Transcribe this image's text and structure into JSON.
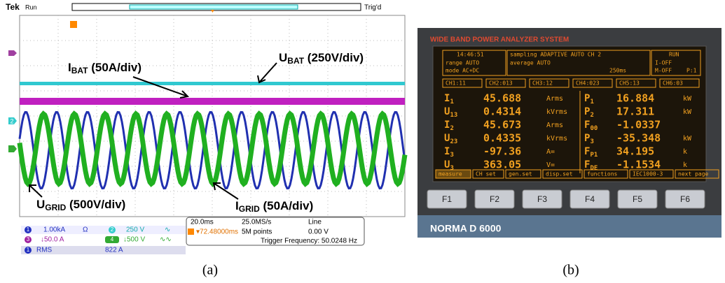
{
  "panel_a": {
    "header": {
      "brand": "Tek",
      "status": "Run",
      "trigger": "Trig'd"
    },
    "annotations": [
      {
        "main": "I",
        "sub": "BAT",
        "scale": " (50A/div)"
      },
      {
        "main": "U",
        "sub": "BAT",
        "scale": " (250V/div)"
      },
      {
        "main": "U",
        "sub": "GRID",
        "scale": " (500V/div)"
      },
      {
        "main": "I",
        "sub": "GRID",
        "scale": " (50A/div)"
      }
    ],
    "markers": [
      "2"
    ],
    "channels": [
      {
        "id": "1",
        "scale": "1.00kA",
        "symbol": "Ω"
      },
      {
        "id": "2",
        "scale": "250 V",
        "symbol": "∿"
      },
      {
        "id": "3",
        "scale": "↓50.0 A"
      },
      {
        "id": "4",
        "scale": "↓500 V",
        "symbol": "∿∿"
      }
    ],
    "timebase": {
      "horizontal": "20.0ms",
      "rate": "25.0MS/s",
      "source": "Line",
      "position": "▾72.48000ms",
      "record": "5M points",
      "level": "0.00 V",
      "frequency": "Trigger Frequency: 50.0248 Hz"
    },
    "measurement": {
      "id": "1",
      "name": "RMS",
      "value": "822 A"
    },
    "caption": "(a)"
  },
  "panel_b": {
    "header": "WIDE BAND POWER ANALYZER SYSTEM",
    "status": {
      "time": "14:46:51",
      "range": "range   AUTO",
      "mode": "mode    AC+DC",
      "sampling": "sampling ADAPTIVE AUTO  CH 2",
      "average": "average   AUTO",
      "interval": "250ms",
      "run": "RUN",
      "i_off": "I-OFF",
      "m_off": "M-OFF",
      "page": "P:1"
    },
    "tabs": [
      "CH1:11",
      "CH2:013",
      "CH3:12",
      "CH4:023",
      "CH5:13",
      "CH6:03"
    ],
    "left": [
      {
        "label": "I",
        "sub": "1",
        "value": "45.688",
        "unit": "Arms"
      },
      {
        "label": "U",
        "sub": "13",
        "value": "0.4314",
        "unit": "kVrms"
      },
      {
        "label": "I",
        "sub": "2",
        "value": "45.673",
        "unit": "Arms"
      },
      {
        "label": "U",
        "sub": "23",
        "value": "0.4335",
        "unit": "kVrms"
      },
      {
        "label": "I",
        "sub": "3",
        "value": "-97.36",
        "unit": "A="
      },
      {
        "label": "U",
        "sub": "3",
        "value": "363.05",
        "unit": "V="
      }
    ],
    "right": [
      {
        "label": "P",
        "sub": "1",
        "value": "16.884",
        "unit": "kW"
      },
      {
        "label": "P",
        "sub": "2",
        "value": "17.311",
        "unit": "kW"
      },
      {
        "label": "F",
        "sub": "00",
        "value": "-1.0337",
        "unit": ""
      },
      {
        "label": "P",
        "sub": "3",
        "value": "-35.348",
        "unit": "kW"
      },
      {
        "label": "F",
        "sub": "P1",
        "value": "34.195",
        "unit": "k"
      },
      {
        "label": "F",
        "sub": "DE",
        "value": "-1.1534",
        "unit": "k"
      }
    ],
    "menu": [
      "measure",
      "CH set",
      "gen.set",
      "disp.set",
      "functions",
      "IEC1000-3",
      "next page"
    ],
    "keys": [
      "F1",
      "F2",
      "F3",
      "F4",
      "F5",
      "F6"
    ],
    "brand": "NORMA  D 6000",
    "caption": "(b)"
  }
}
